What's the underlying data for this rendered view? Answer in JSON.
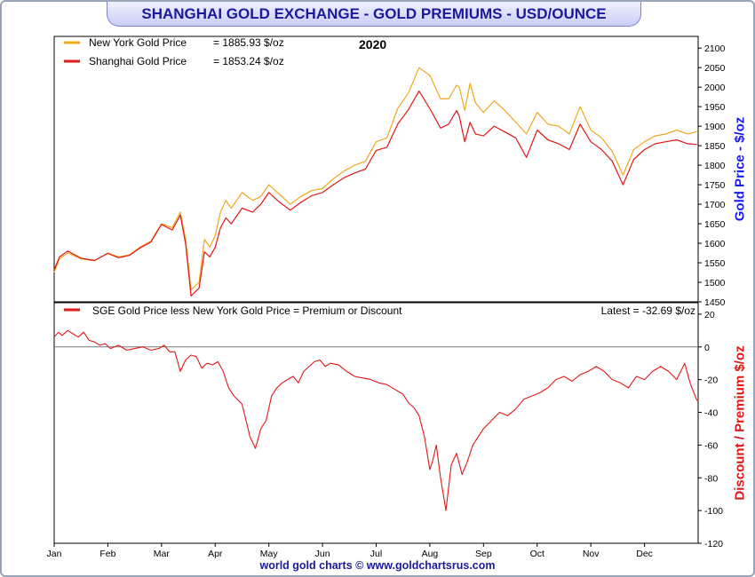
{
  "title": "SHANGHAI GOLD EXCHANGE - GOLD PREMIUMS - USD/OUNCE",
  "footer": "world gold charts © www.goldchartsrus.com",
  "colors": {
    "ny": "#f0a81e",
    "sge": "#e01818",
    "title_text": "#1a1a9a",
    "axis_blue": "#1a1aee",
    "axis_red": "#e01818"
  },
  "chart_data": [
    {
      "type": "line",
      "panel": "price",
      "year_label": "2020",
      "ylabel": "Gold Price - $/oz",
      "ylim": [
        1450,
        2130
      ],
      "yticks": [
        1450,
        1500,
        1550,
        1600,
        1650,
        1700,
        1750,
        1800,
        1850,
        1900,
        1950,
        2000,
        2050,
        2100
      ],
      "xlim": [
        0,
        12
      ],
      "series": [
        {
          "name": "New York Gold Price",
          "legend_value": "= 1885.93 $/oz",
          "color": "#f0a81e",
          "x": [
            0,
            0.1,
            0.25,
            0.5,
            0.75,
            1.0,
            1.2,
            1.4,
            1.6,
            1.8,
            2.0,
            2.2,
            2.35,
            2.45,
            2.55,
            2.7,
            2.8,
            2.9,
            3.0,
            3.1,
            3.2,
            3.3,
            3.5,
            3.7,
            3.85,
            4.0,
            4.2,
            4.4,
            4.6,
            4.8,
            5.0,
            5.2,
            5.4,
            5.6,
            5.8,
            6.0,
            6.2,
            6.4,
            6.6,
            6.8,
            7.0,
            7.2,
            7.35,
            7.5,
            7.55,
            7.65,
            7.75,
            7.85,
            8.0,
            8.2,
            8.4,
            8.6,
            8.8,
            9.0,
            9.2,
            9.4,
            9.6,
            9.8,
            10.0,
            10.2,
            10.4,
            10.6,
            10.8,
            11.0,
            11.2,
            11.4,
            11.6,
            11.8,
            11.98
          ],
          "values": [
            1525,
            1560,
            1575,
            1560,
            1555,
            1575,
            1565,
            1570,
            1590,
            1605,
            1650,
            1640,
            1680,
            1610,
            1480,
            1500,
            1610,
            1590,
            1620,
            1680,
            1710,
            1690,
            1730,
            1710,
            1720,
            1750,
            1725,
            1700,
            1720,
            1735,
            1740,
            1765,
            1785,
            1800,
            1810,
            1860,
            1870,
            1945,
            1985,
            2050,
            2030,
            1970,
            1970,
            2005,
            2000,
            1940,
            2010,
            1960,
            1935,
            1965,
            1940,
            1910,
            1880,
            1935,
            1905,
            1900,
            1880,
            1950,
            1890,
            1870,
            1835,
            1775,
            1840,
            1860,
            1875,
            1880,
            1890,
            1880,
            1886
          ]
        },
        {
          "name": "Shanghai Gold Price",
          "legend_value": "= 1853.24 $/oz",
          "color": "#e01818",
          "x": [
            0,
            0.1,
            0.25,
            0.5,
            0.75,
            1.0,
            1.2,
            1.4,
            1.6,
            1.8,
            2.0,
            2.2,
            2.35,
            2.45,
            2.55,
            2.7,
            2.8,
            2.9,
            3.0,
            3.1,
            3.2,
            3.3,
            3.5,
            3.7,
            3.85,
            4.0,
            4.2,
            4.4,
            4.6,
            4.8,
            5.0,
            5.2,
            5.4,
            5.6,
            5.8,
            6.0,
            6.2,
            6.4,
            6.6,
            6.8,
            7.0,
            7.2,
            7.35,
            7.5,
            7.55,
            7.65,
            7.75,
            7.85,
            8.0,
            8.2,
            8.4,
            8.6,
            8.8,
            9.0,
            9.2,
            9.4,
            9.6,
            9.8,
            10.0,
            10.2,
            10.4,
            10.6,
            10.8,
            11.0,
            11.2,
            11.4,
            11.6,
            11.8,
            11.98
          ],
          "values": [
            1532,
            1565,
            1580,
            1562,
            1556,
            1574,
            1563,
            1569,
            1588,
            1603,
            1648,
            1634,
            1672,
            1598,
            1465,
            1485,
            1578,
            1565,
            1590,
            1640,
            1665,
            1650,
            1690,
            1680,
            1700,
            1730,
            1705,
            1685,
            1705,
            1722,
            1730,
            1750,
            1768,
            1780,
            1790,
            1838,
            1846,
            1905,
            1942,
            1990,
            1945,
            1895,
            1905,
            1940,
            1925,
            1860,
            1910,
            1880,
            1875,
            1900,
            1885,
            1870,
            1820,
            1890,
            1865,
            1855,
            1840,
            1905,
            1860,
            1840,
            1810,
            1750,
            1815,
            1840,
            1855,
            1860,
            1865,
            1855,
            1853
          ]
        }
      ]
    },
    {
      "type": "line",
      "panel": "premium",
      "ylabel": "Discount / Premium $/oz",
      "ylim": [
        -120,
        27
      ],
      "yticks": [
        -120,
        -100,
        -80,
        -60,
        -40,
        -20,
        0,
        20
      ],
      "xlim": [
        0,
        12
      ],
      "x_tick_labels": [
        "Jan",
        "Feb",
        "Mar",
        "Apr",
        "May",
        "Jun",
        "Jul",
        "Aug",
        "Sep",
        "Oct",
        "Nov",
        "Dec"
      ],
      "series": [
        {
          "name": "SGE Gold Price less New York Gold Price = Premium or Discount",
          "latest": "Latest = -32.69 $/oz",
          "color": "#e01818",
          "x": [
            0,
            0.08,
            0.15,
            0.25,
            0.35,
            0.45,
            0.55,
            0.65,
            0.75,
            0.85,
            0.95,
            1.05,
            1.2,
            1.35,
            1.5,
            1.65,
            1.8,
            1.95,
            2.05,
            2.15,
            2.25,
            2.35,
            2.45,
            2.55,
            2.65,
            2.75,
            2.85,
            2.95,
            3.05,
            3.15,
            3.25,
            3.35,
            3.5,
            3.65,
            3.75,
            3.85,
            3.95,
            4.05,
            4.15,
            4.25,
            4.35,
            4.45,
            4.55,
            4.65,
            4.75,
            4.85,
            4.95,
            5.05,
            5.15,
            5.3,
            5.45,
            5.6,
            5.75,
            5.9,
            6.05,
            6.2,
            6.35,
            6.5,
            6.6,
            6.7,
            6.8,
            6.9,
            7.0,
            7.05,
            7.12,
            7.2,
            7.3,
            7.4,
            7.5,
            7.6,
            7.7,
            7.8,
            7.9,
            8.0,
            8.15,
            8.3,
            8.45,
            8.6,
            8.75,
            8.9,
            9.05,
            9.2,
            9.35,
            9.5,
            9.65,
            9.8,
            9.95,
            10.1,
            10.25,
            10.4,
            10.55,
            10.7,
            10.85,
            11.0,
            11.15,
            11.3,
            11.45,
            11.6,
            11.75,
            11.85,
            11.92,
            11.98
          ],
          "values": [
            6,
            9,
            7,
            10,
            8,
            6,
            9,
            4,
            3,
            1,
            2,
            -1,
            1,
            -2,
            -1,
            0,
            -2,
            -1,
            1,
            -3,
            -3,
            -15,
            -8,
            -5,
            -6,
            -13,
            -10,
            -11,
            -9,
            -15,
            -25,
            -30,
            -35,
            -55,
            -62,
            -50,
            -45,
            -30,
            -25,
            -22,
            -20,
            -18,
            -22,
            -15,
            -12,
            -9,
            -8,
            -12,
            -10,
            -11,
            -15,
            -18,
            -19,
            -20,
            -22,
            -23,
            -26,
            -29,
            -34,
            -37,
            -42,
            -55,
            -75,
            -70,
            -60,
            -80,
            -100,
            -72,
            -65,
            -78,
            -70,
            -60,
            -55,
            -50,
            -45,
            -40,
            -42,
            -38,
            -32,
            -30,
            -28,
            -25,
            -20,
            -18,
            -21,
            -17,
            -15,
            -12,
            -15,
            -20,
            -22,
            -25,
            -18,
            -20,
            -15,
            -12,
            -15,
            -20,
            -10,
            -22,
            -28,
            -33
          ]
        }
      ]
    }
  ]
}
